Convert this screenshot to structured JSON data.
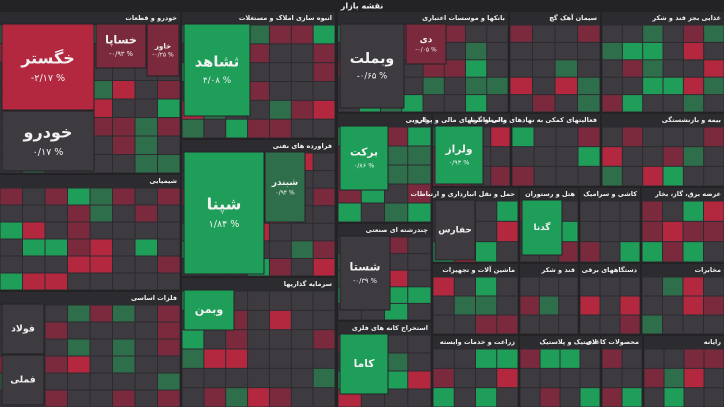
{
  "title": "نقشه بازار",
  "sectors": [
    {
      "name": "خودرو و قطعات",
      "tiles": [
        {
          "symbol": "خگستر",
          "change": "-۲/۱۷ %"
        },
        {
          "symbol": "خودرو",
          "change": "۰/۱۷ %"
        },
        {
          "symbol": "خساپا",
          "change": "-۰/۹۳ %"
        },
        {
          "symbol": "خاور",
          "change": "-۰/۲۵ %"
        }
      ]
    },
    {
      "name": "انبوه سازی املاک و مستغلات",
      "tiles": [
        {
          "symbol": "ثشاهد",
          "change": "۴/۰۸ %"
        }
      ]
    },
    {
      "name": "بانکها و موسسات اعتباری",
      "tiles": [
        {
          "symbol": "وبملت",
          "change": "-۰/۶۵ %"
        },
        {
          "symbol": "دی",
          "change": "-۰/۰۵ %"
        }
      ]
    },
    {
      "name": "سیمان آهک گچ",
      "tiles": []
    },
    {
      "name": "غذایی بجز قند و شکر",
      "tiles": []
    },
    {
      "name": "فراورده های نفتی",
      "tiles": [
        {
          "symbol": "شپنا",
          "change": "۱/۸۴ %"
        },
        {
          "symbol": "شبندر",
          "change": "۰/۹۴ %"
        }
      ]
    },
    {
      "name": "شیمیایی",
      "tiles": []
    },
    {
      "name": "فلزات اساسی",
      "tiles": [
        {
          "symbol": "فولاد"
        },
        {
          "symbol": "فملی"
        }
      ]
    },
    {
      "name": "سرمایه گذاریها",
      "tiles": [
        {
          "symbol": "وبمن"
        }
      ]
    },
    {
      "name": "دارویی",
      "tiles": [
        {
          "symbol": "برکت",
          "change": "۰/۸۶ %"
        }
      ]
    },
    {
      "name": "چندرشته ای صنعتی",
      "tiles": [
        {
          "symbol": "شستا",
          "change": "-۰/۳۹ %"
        }
      ]
    },
    {
      "name": "استخراج کانه های فلزی",
      "tiles": [
        {
          "symbol": "کاما"
        }
      ]
    },
    {
      "name": "واسطه گریهای مالی و پولی",
      "tiles": [
        {
          "symbol": "ولراز",
          "change": "۰/۹۳ %"
        }
      ]
    },
    {
      "name": "فعالیتهای کمکی به نهادهای مالی واسط",
      "tiles": []
    },
    {
      "name": "بیمه و بازنشستگی",
      "tiles": []
    },
    {
      "name": "حمل و نقل انبارداری و ارتباطات",
      "tiles": [
        {
          "symbol": "حفارس"
        }
      ]
    },
    {
      "name": "هتل و رستوران",
      "tiles": [
        {
          "symbol": "گدنا"
        }
      ]
    },
    {
      "name": "کاشی و سرامیک",
      "tiles": []
    },
    {
      "name": "عرضه برق، گاز، بخار",
      "tiles": []
    },
    {
      "name": "ماشین آلات و تجهیزات",
      "tiles": []
    },
    {
      "name": "قند و شکر",
      "tiles": []
    },
    {
      "name": "دستگاههای برقی",
      "tiles": []
    },
    {
      "name": "مخابرات",
      "tiles": []
    },
    {
      "name": "زراعت و خدمات وابسته",
      "tiles": []
    },
    {
      "name": "لاستیک و پلاستیک",
      "tiles": []
    },
    {
      "name": "محصولات کاغذی",
      "tiles": []
    },
    {
      "name": "رایانه",
      "tiles": []
    }
  ]
}
